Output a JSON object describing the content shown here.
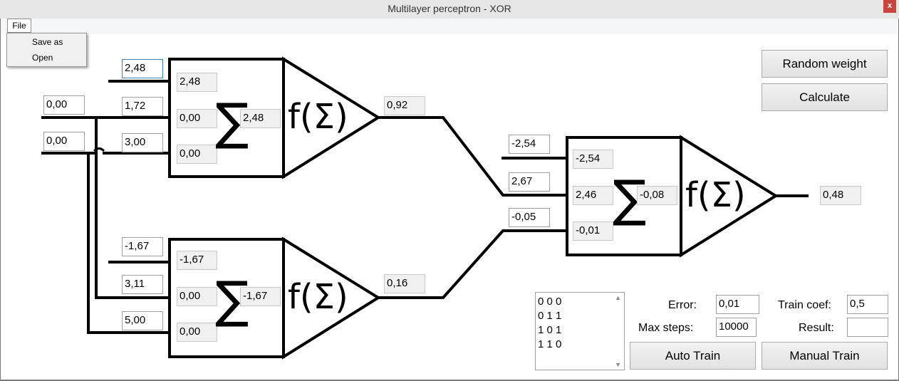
{
  "window": {
    "title": "Multilayer perceptron - XOR",
    "close_label": "x"
  },
  "menu": {
    "file_label": "File",
    "items": [
      "Save as",
      "Open"
    ]
  },
  "inputs": {
    "x1": "0,00",
    "x2": "0,00"
  },
  "neuron1": {
    "weights": [
      "2,48",
      "1,72",
      "3,00"
    ],
    "products": [
      "2,48",
      "0,00",
      "0,00"
    ],
    "sum": "2,48",
    "sigma_symbol": "∑",
    "activation_label": "f(Σ)",
    "output": "0,92"
  },
  "neuron2": {
    "weights": [
      "-1,67",
      "3,11",
      "5,00"
    ],
    "products": [
      "-1,67",
      "0,00",
      "0,00"
    ],
    "sum": "-1,67",
    "sigma_symbol": "∑",
    "activation_label": "f(Σ)",
    "output": "0,16"
  },
  "neuron3": {
    "weights": [
      "-2,54",
      "2,67",
      "-0,05"
    ],
    "products": [
      "-2,54",
      "2,46",
      "-0,01"
    ],
    "sum": "-0,08",
    "sigma_symbol": "∑",
    "activation_label": "f(Σ)",
    "output": "0,48"
  },
  "buttons": {
    "random_weight": "Random weight",
    "calculate": "Calculate",
    "auto_train": "Auto Train",
    "manual_train": "Manual Train"
  },
  "training_set": {
    "rows": [
      "0 0 0",
      "0 1 1",
      "1 0 1",
      "1 1 0"
    ]
  },
  "settings": {
    "error_label": "Error:",
    "error_value": "0,01",
    "max_steps_label": "Max steps:",
    "max_steps_value": "10000",
    "train_coef_label": "Train coef:",
    "train_coef_value": "0,5",
    "result_label": "Result:",
    "result_value": ""
  }
}
